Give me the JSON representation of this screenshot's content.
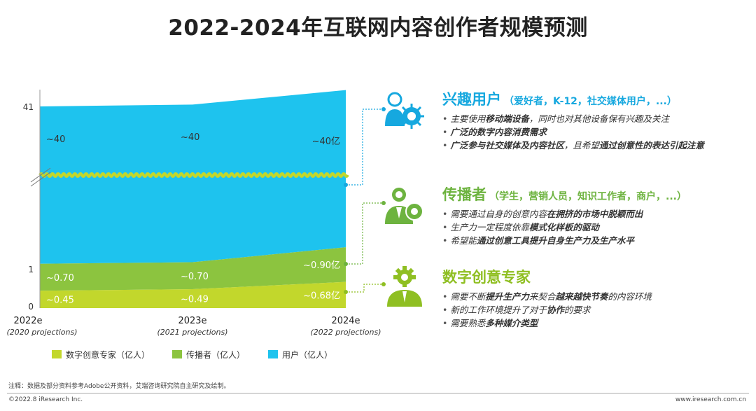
{
  "title": "2022-2024年互联网内容创作者规模预测",
  "chart_data": {
    "type": "area",
    "x": [
      "2022e",
      "2023e",
      "2024e"
    ],
    "x_sublabels": [
      "(2020 projections)",
      "(2021 projections)",
      "(2022 projections)"
    ],
    "y_ticks": [
      "41",
      "1",
      "0"
    ],
    "series": [
      {
        "name": "数字创意专家（亿人）",
        "color": "#c2d72c",
        "values": [
          0.45,
          0.49,
          0.68
        ],
        "labels": [
          "~0.45",
          "~0.49",
          "~0.68亿"
        ]
      },
      {
        "name": "传播者（亿人）",
        "color": "#8cc43f",
        "values": [
          0.7,
          0.7,
          0.9
        ],
        "labels": [
          "~0.70",
          "~0.70",
          "~0.90亿"
        ]
      },
      {
        "name": "用户（亿人）",
        "color": "#1ec3ee",
        "values": [
          40,
          40,
          40
        ],
        "labels": [
          "~40",
          "~40",
          "~40亿"
        ]
      }
    ],
    "axis_break": true,
    "stacked": true
  },
  "segments": [
    {
      "heading": "兴趣用户",
      "sub": "（爱好者，K-12，社交媒体用户，...）",
      "color": "#16a8df",
      "icon": "user-gear-icon",
      "bullets": [
        [
          {
            "t": "主要使用"
          },
          {
            "t": "移动端设备",
            "b": true
          },
          {
            "t": "，同时也对其他设备保有兴趣及关注"
          }
        ],
        [
          {
            "t": "广泛的数字内容消费需求",
            "b": true
          }
        ],
        [
          {
            "t": "广泛参与社交媒体及内容社区",
            "b": true
          },
          {
            "t": "，且希望"
          },
          {
            "t": "通过创意性的表达引起注意",
            "b": true
          }
        ]
      ]
    },
    {
      "heading": "传播者",
      "sub": "（学生，营销人员，知识工作者，商户，...）",
      "color": "#6db33f",
      "icon": "presenter-icon",
      "bullets": [
        [
          {
            "t": "需要通过自身的创意内容"
          },
          {
            "t": "在拥挤的市场中脱颖而出",
            "b": true
          }
        ],
        [
          {
            "t": "生产力一定程度依靠"
          },
          {
            "t": "模式化样板的驱动",
            "b": true
          }
        ],
        [
          {
            "t": "希望能"
          },
          {
            "t": "通过创意工具提升自身生产力及生产水平",
            "b": true
          }
        ]
      ]
    },
    {
      "heading": "数字创意专家",
      "sub": "",
      "color": "#8fbf22",
      "icon": "expert-gear-icon",
      "bullets": [
        [
          {
            "t": "需要不断"
          },
          {
            "t": "提升生产力",
            "b": true
          },
          {
            "t": "来契合"
          },
          {
            "t": "越来越快节奏",
            "b": true
          },
          {
            "t": "的内容环境"
          }
        ],
        [
          {
            "t": "新的工作环境提升了对于"
          },
          {
            "t": "协作",
            "b": true
          },
          {
            "t": "的要求"
          }
        ],
        [
          {
            "t": "需要熟悉"
          },
          {
            "t": "多种媒介类型",
            "b": true
          }
        ]
      ]
    }
  ],
  "note": "注释：数据及部分资料参考Adobe公开资料，艾瑞咨询研究院自主研究及绘制。",
  "footer_left": "©2022.8 iResearch Inc.",
  "footer_right": "www.iresearch.com.cn"
}
